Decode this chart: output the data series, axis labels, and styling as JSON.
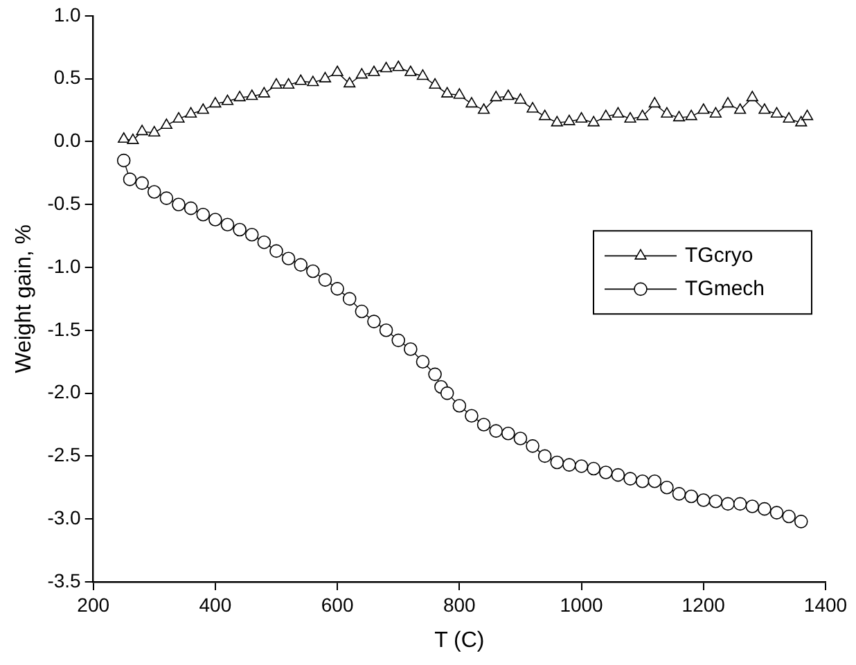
{
  "chart_data": {
    "type": "line",
    "xlabel": "T (C)",
    "ylabel": "Weight gain, %",
    "xlim": [
      200,
      1400
    ],
    "xticks": [
      200,
      400,
      600,
      800,
      1000,
      1200,
      1400
    ],
    "ylim": [
      -3.5,
      1.0
    ],
    "yticks": [
      {
        "value": -3.5,
        "label": "-3.5"
      },
      {
        "value": -3,
        "label": "-3.0"
      },
      {
        "value": -2.5,
        "label": "-2.5"
      },
      {
        "value": -2,
        "label": "-2.0"
      },
      {
        "value": -1.5,
        "label": "-1.5"
      },
      {
        "value": -1,
        "label": "-1.0"
      },
      {
        "value": -0.5,
        "label": "-0.5"
      },
      {
        "value": 0,
        "label": "0.0"
      },
      {
        "value": 0.5,
        "label": "0.5"
      },
      {
        "value": 1,
        "label": "1.0"
      }
    ],
    "grid": false,
    "legend": "right",
    "line_style": "solid",
    "series": [
      {
        "name": "TGcryo",
        "color": "#000000",
        "marker": "triangle",
        "x": [
          250,
          265,
          280,
          300,
          320,
          340,
          360,
          380,
          400,
          420,
          440,
          460,
          480,
          500,
          520,
          540,
          560,
          580,
          600,
          620,
          640,
          660,
          680,
          700,
          720,
          740,
          760,
          780,
          800,
          820,
          840,
          860,
          880,
          900,
          920,
          940,
          960,
          980,
          1000,
          1020,
          1040,
          1060,
          1080,
          1100,
          1120,
          1140,
          1160,
          1180,
          1200,
          1220,
          1240,
          1260,
          1280,
          1300,
          1320,
          1340,
          1360,
          1370
        ],
        "values": [
          0.02,
          0.01,
          0.08,
          0.07,
          0.13,
          0.18,
          0.22,
          0.25,
          0.3,
          0.32,
          0.35,
          0.36,
          0.38,
          0.45,
          0.45,
          0.48,
          0.47,
          0.5,
          0.55,
          0.46,
          0.53,
          0.55,
          0.58,
          0.59,
          0.55,
          0.52,
          0.45,
          0.38,
          0.37,
          0.3,
          0.25,
          0.35,
          0.36,
          0.33,
          0.26,
          0.2,
          0.15,
          0.16,
          0.18,
          0.15,
          0.2,
          0.22,
          0.18,
          0.2,
          0.3,
          0.22,
          0.19,
          0.2,
          0.25,
          0.22,
          0.3,
          0.25,
          0.35,
          0.25,
          0.22,
          0.18,
          0.15,
          0.2
        ]
      },
      {
        "name": "TGmech",
        "color": "#000000",
        "marker": "circle",
        "x": [
          250,
          260,
          280,
          300,
          320,
          340,
          360,
          380,
          400,
          420,
          440,
          460,
          480,
          500,
          520,
          540,
          560,
          580,
          600,
          620,
          640,
          660,
          680,
          700,
          720,
          740,
          760,
          770,
          780,
          800,
          820,
          840,
          860,
          880,
          900,
          920,
          940,
          960,
          980,
          1000,
          1020,
          1040,
          1060,
          1080,
          1100,
          1120,
          1140,
          1160,
          1180,
          1200,
          1220,
          1240,
          1260,
          1280,
          1300,
          1320,
          1340,
          1360
        ],
        "values": [
          -0.15,
          -0.3,
          -0.33,
          -0.4,
          -0.45,
          -0.5,
          -0.53,
          -0.58,
          -0.62,
          -0.66,
          -0.7,
          -0.74,
          -0.8,
          -0.87,
          -0.93,
          -0.98,
          -1.03,
          -1.1,
          -1.17,
          -1.25,
          -1.35,
          -1.43,
          -1.5,
          -1.58,
          -1.65,
          -1.75,
          -1.85,
          -1.95,
          -2.0,
          -2.1,
          -2.18,
          -2.25,
          -2.3,
          -2.32,
          -2.36,
          -2.42,
          -2.5,
          -2.55,
          -2.57,
          -2.58,
          -2.6,
          -2.63,
          -2.65,
          -2.68,
          -2.7,
          -2.7,
          -2.75,
          -2.8,
          -2.82,
          -2.85,
          -2.86,
          -2.88,
          -2.88,
          -2.9,
          -2.92,
          -2.95,
          -2.98,
          -3.02
        ]
      }
    ]
  }
}
